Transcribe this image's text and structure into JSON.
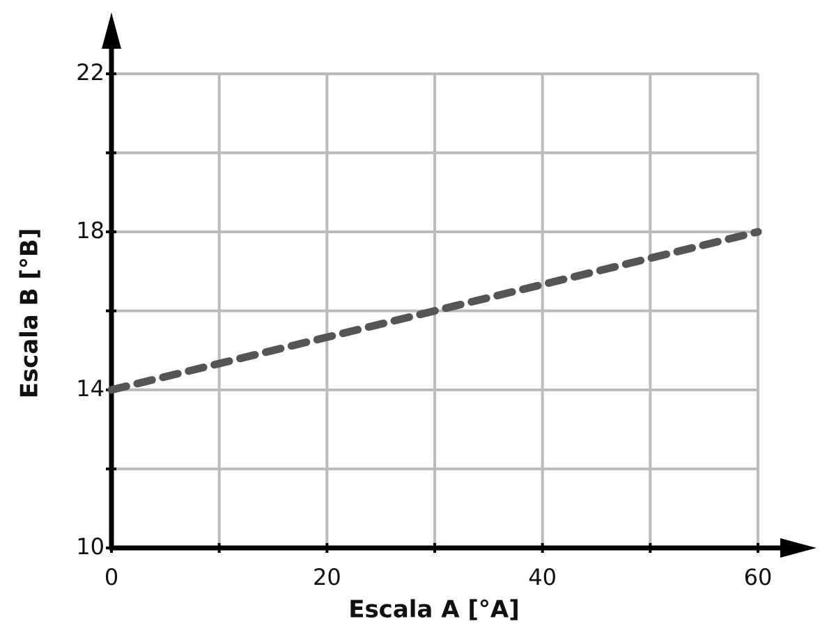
{
  "chart_data": {
    "type": "line",
    "x_label": "Escala A [°A]",
    "y_label": "Escala B [°B]",
    "x": [
      0,
      60
    ],
    "series": [
      {
        "color": "#555555",
        "values": [
          14,
          18
        ]
      }
    ],
    "xlim": [
      0,
      60
    ],
    "ylim": [
      10,
      22
    ],
    "xticks": [
      0,
      20,
      40,
      60
    ],
    "yticks": [
      10,
      14,
      18,
      22
    ],
    "x_minor_ticks": [
      10,
      30,
      50
    ],
    "y_minor_ticks": [
      12,
      16,
      20
    ],
    "grid": true,
    "line_style": "dashed"
  }
}
